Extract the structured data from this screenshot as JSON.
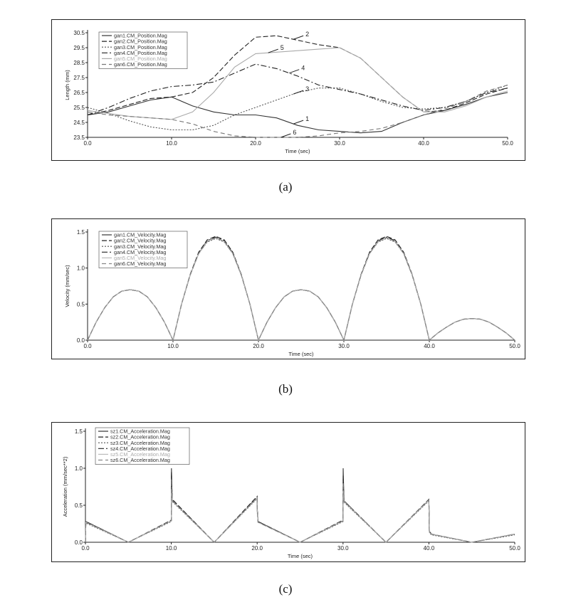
{
  "captions": [
    "(a)",
    "(b)",
    "(c)"
  ],
  "chart_data": [
    {
      "type": "line",
      "xlabel": "Time (sec)",
      "ylabel": "Length (mm)",
      "xlim": [
        0,
        50
      ],
      "ylim": [
        23.5,
        30.5
      ],
      "xticks": [
        "0.0",
        "10.0",
        "20.0",
        "30.0",
        "40.0",
        "50.0"
      ],
      "yticks": [
        "23.5",
        "24.5",
        "25.5",
        "26.5",
        "27.5",
        "28.5",
        "29.5",
        "30.5"
      ],
      "legend_position": "top-left",
      "grid": false,
      "x": [
        0,
        2.5,
        5,
        7.5,
        10,
        12.5,
        15,
        17.5,
        20,
        22.5,
        25,
        27.5,
        30,
        32.5,
        35,
        37.5,
        40,
        42.5,
        45,
        47.5,
        50
      ],
      "series": [
        {
          "name": "gan1.CM_Position.Mag",
          "label": "1",
          "color": "#333333",
          "dash": "",
          "values": [
            25.0,
            25.2,
            25.6,
            26.0,
            26.2,
            25.6,
            25.2,
            25.0,
            25.0,
            24.8,
            24.3,
            24.0,
            23.9,
            23.8,
            23.9,
            24.5,
            25.0,
            25.3,
            25.7,
            26.2,
            26.5
          ]
        },
        {
          "name": "gan2.CM_Position.Mag",
          "label": "2",
          "color": "#222222",
          "dash": "7,3",
          "values": [
            25.0,
            25.3,
            25.7,
            26.1,
            26.2,
            26.5,
            27.5,
            29.0,
            30.2,
            30.3,
            30.0,
            29.7,
            29.5,
            28.8,
            27.5,
            26.2,
            25.2,
            25.3,
            25.8,
            26.4,
            26.8
          ]
        },
        {
          "name": "gan3.CM_Position.Mag",
          "label": "3",
          "color": "#555555",
          "dash": "2,2",
          "values": [
            25.5,
            25.1,
            24.6,
            24.2,
            24.0,
            24.0,
            24.3,
            25.0,
            25.5,
            26.0,
            26.5,
            26.8,
            26.8,
            26.4,
            25.9,
            25.5,
            25.4,
            25.5,
            25.9,
            26.5,
            27.0
          ]
        },
        {
          "name": "gan4.CM_Position.Mag",
          "label": "4",
          "color": "#222222",
          "dash": "8,3,2,3",
          "values": [
            25.0,
            25.5,
            26.1,
            26.6,
            26.9,
            27.0,
            27.2,
            27.8,
            28.4,
            28.1,
            27.6,
            27.0,
            26.7,
            26.4,
            26.0,
            25.6,
            25.3,
            25.5,
            25.9,
            26.5,
            26.8
          ]
        },
        {
          "name": "gan5.CM_Position.Mag",
          "label": "5",
          "color": "#aaaaaa",
          "dash": "",
          "values": [
            25.3,
            25.1,
            24.9,
            24.8,
            24.7,
            25.2,
            26.5,
            28.2,
            29.1,
            29.2,
            29.3,
            29.4,
            29.5,
            28.8,
            27.5,
            26.2,
            25.2,
            25.2,
            25.6,
            26.2,
            26.6
          ]
        },
        {
          "name": "gan6.CM_Position.Mag",
          "label": "6",
          "color": "#777777",
          "dash": "6,4",
          "values": [
            25.2,
            25.0,
            24.9,
            24.8,
            24.7,
            24.4,
            23.9,
            23.6,
            23.5,
            23.5,
            23.5,
            23.6,
            23.8,
            23.9,
            24.1,
            24.5,
            25.0,
            25.4,
            25.9,
            26.6,
            27.0
          ]
        }
      ]
    },
    {
      "type": "line",
      "xlabel": "Time (sec)",
      "ylabel": "Velocity (mm/sec)",
      "xlim": [
        0,
        50
      ],
      "ylim": [
        0,
        1.5
      ],
      "xticks": [
        "0.0",
        "10.0",
        "20.0",
        "30.0",
        "40.0",
        "50.0"
      ],
      "yticks": [
        "0.0",
        "0.5",
        "1.0",
        "1.5"
      ],
      "legend_position": "top-left",
      "grid": false,
      "x": [
        0,
        1,
        2,
        3,
        4,
        5,
        6,
        7,
        8,
        9,
        10,
        11,
        12,
        13,
        14,
        15,
        16,
        17,
        18,
        19,
        20,
        21,
        22,
        23,
        24,
        25,
        26,
        27,
        28,
        29,
        30,
        31,
        32,
        33,
        34,
        35,
        36,
        37,
        38,
        39,
        40,
        41,
        42,
        43,
        44,
        45,
        46,
        47,
        48,
        49,
        50
      ],
      "series": [
        {
          "name": "gan1.CM_Velocity.Mag",
          "color": "#333333",
          "dash": "",
          "values": [
            0,
            0.25,
            0.45,
            0.6,
            0.68,
            0.7,
            0.68,
            0.6,
            0.45,
            0.25,
            0,
            0.5,
            0.9,
            1.2,
            1.37,
            1.42,
            1.37,
            1.2,
            0.9,
            0.5,
            0,
            0.25,
            0.45,
            0.6,
            0.68,
            0.7,
            0.68,
            0.6,
            0.45,
            0.25,
            0,
            0.5,
            0.9,
            1.2,
            1.37,
            1.42,
            1.37,
            1.2,
            0.9,
            0.5,
            0,
            0.1,
            0.18,
            0.25,
            0.29,
            0.3,
            0.29,
            0.25,
            0.18,
            0.1,
            0
          ]
        },
        {
          "name": "gan2.CM_Velocity.Mag",
          "color": "#222222",
          "dash": "7,3",
          "values": [
            0,
            0.25,
            0.45,
            0.6,
            0.68,
            0.7,
            0.68,
            0.6,
            0.45,
            0.25,
            0,
            0.5,
            0.91,
            1.22,
            1.39,
            1.44,
            1.39,
            1.22,
            0.91,
            0.5,
            0,
            0.25,
            0.45,
            0.6,
            0.68,
            0.7,
            0.68,
            0.6,
            0.45,
            0.25,
            0,
            0.5,
            0.91,
            1.22,
            1.39,
            1.44,
            1.39,
            1.22,
            0.91,
            0.5,
            0,
            0.1,
            0.18,
            0.25,
            0.29,
            0.3,
            0.29,
            0.25,
            0.18,
            0.1,
            0
          ]
        },
        {
          "name": "gan3.CM_Velocity.Mag",
          "color": "#555555",
          "dash": "2,2",
          "values": [
            0,
            0.25,
            0.45,
            0.6,
            0.68,
            0.7,
            0.68,
            0.6,
            0.45,
            0.25,
            0,
            0.5,
            0.9,
            1.2,
            1.36,
            1.41,
            1.36,
            1.2,
            0.9,
            0.5,
            0,
            0.25,
            0.45,
            0.6,
            0.68,
            0.7,
            0.68,
            0.6,
            0.45,
            0.25,
            0,
            0.5,
            0.9,
            1.2,
            1.36,
            1.41,
            1.36,
            1.2,
            0.9,
            0.5,
            0,
            0.1,
            0.18,
            0.25,
            0.29,
            0.3,
            0.29,
            0.25,
            0.18,
            0.1,
            0
          ]
        },
        {
          "name": "gan4.CM_Velocity.Mag",
          "color": "#222222",
          "dash": "8,3,2,3",
          "values": [
            0,
            0.25,
            0.45,
            0.6,
            0.68,
            0.7,
            0.68,
            0.6,
            0.45,
            0.25,
            0,
            0.5,
            0.9,
            1.21,
            1.38,
            1.43,
            1.38,
            1.21,
            0.9,
            0.5,
            0,
            0.25,
            0.45,
            0.6,
            0.68,
            0.7,
            0.68,
            0.6,
            0.45,
            0.25,
            0,
            0.5,
            0.9,
            1.21,
            1.38,
            1.43,
            1.38,
            1.21,
            0.9,
            0.5,
            0,
            0.1,
            0.18,
            0.25,
            0.29,
            0.3,
            0.29,
            0.25,
            0.18,
            0.1,
            0
          ]
        },
        {
          "name": "gan5.CM_Velocity.Mag",
          "color": "#bbbbbb",
          "dash": "",
          "values": [
            0,
            0.25,
            0.45,
            0.6,
            0.68,
            0.7,
            0.68,
            0.6,
            0.45,
            0.25,
            0,
            0.5,
            0.9,
            1.2,
            1.37,
            1.42,
            1.37,
            1.2,
            0.9,
            0.5,
            0,
            0.25,
            0.45,
            0.6,
            0.68,
            0.7,
            0.68,
            0.6,
            0.45,
            0.25,
            0,
            0.5,
            0.9,
            1.2,
            1.37,
            1.42,
            1.37,
            1.2,
            0.9,
            0.5,
            0,
            0.1,
            0.18,
            0.25,
            0.29,
            0.3,
            0.29,
            0.25,
            0.18,
            0.1,
            0
          ]
        },
        {
          "name": "gan6.CM_Velocity.Mag",
          "color": "#888888",
          "dash": "6,4",
          "values": [
            0,
            0.25,
            0.45,
            0.6,
            0.68,
            0.7,
            0.68,
            0.6,
            0.45,
            0.25,
            0,
            0.5,
            0.9,
            1.2,
            1.37,
            1.42,
            1.37,
            1.2,
            0.9,
            0.5,
            0,
            0.25,
            0.45,
            0.6,
            0.68,
            0.7,
            0.68,
            0.6,
            0.45,
            0.25,
            0,
            0.5,
            0.9,
            1.2,
            1.37,
            1.42,
            1.37,
            1.2,
            0.9,
            0.5,
            0,
            0.1,
            0.18,
            0.25,
            0.29,
            0.3,
            0.29,
            0.25,
            0.18,
            0.1,
            0
          ]
        }
      ]
    },
    {
      "type": "line",
      "xlabel": "Time (sec)",
      "ylabel": "Acceleration (mm/sec**2)",
      "xlim": [
        0,
        50
      ],
      "ylim": [
        0,
        1.5
      ],
      "xticks": [
        "0.0",
        "10.0",
        "20.0",
        "30.0",
        "40.0",
        "50.0"
      ],
      "yticks": [
        "0.0",
        "0.5",
        "1.0",
        "1.5"
      ],
      "legend_position": "top-left",
      "grid": false,
      "x": [
        0,
        0.05,
        5,
        10,
        10.02,
        10.12,
        15,
        20,
        20.02,
        20.1,
        25,
        30,
        30.02,
        30.12,
        35,
        40,
        40.05,
        40.3,
        45,
        50
      ],
      "series": [
        {
          "name": "sz1.CM_Acceleration.Mag",
          "color": "#333333",
          "dash": "",
          "values": [
            0,
            0.28,
            0,
            0.29,
            1.0,
            0.56,
            0,
            0.6,
            0.45,
            0.28,
            0,
            0.29,
            1.0,
            0.55,
            0,
            0.57,
            0.15,
            0.11,
            0,
            0.11
          ]
        },
        {
          "name": "sz2.CM_Acceleration.Mag",
          "color": "#222222",
          "dash": "7,3",
          "values": [
            0,
            0.27,
            0,
            0.3,
            0.95,
            0.58,
            0,
            0.62,
            0.42,
            0.28,
            0,
            0.3,
            0.85,
            0.56,
            0,
            0.58,
            0.14,
            0.11,
            0,
            0.11
          ]
        },
        {
          "name": "sz3.CM_Acceleration.Mag",
          "color": "#555555",
          "dash": "2,2",
          "values": [
            0,
            0.26,
            0,
            0.28,
            0.8,
            0.55,
            0,
            0.59,
            0.4,
            0.27,
            0,
            0.28,
            0.75,
            0.54,
            0,
            0.56,
            0.13,
            0.1,
            0,
            0.1
          ]
        },
        {
          "name": "sz4.CM_Acceleration.Mag",
          "color": "#222222",
          "dash": "8,3,2,3",
          "values": [
            0,
            0.28,
            0,
            0.29,
            0.9,
            0.57,
            0,
            0.61,
            0.44,
            0.28,
            0,
            0.29,
            0.9,
            0.56,
            0,
            0.57,
            0.15,
            0.11,
            0,
            0.11
          ]
        },
        {
          "name": "sz5.CM_Acceleration.Mag",
          "color": "#bbbbbb",
          "dash": "",
          "values": [
            0,
            0.27,
            0,
            0.29,
            0.7,
            0.56,
            0,
            0.6,
            0.4,
            0.27,
            0,
            0.29,
            0.7,
            0.55,
            0,
            0.57,
            0.13,
            0.11,
            0,
            0.11
          ]
        },
        {
          "name": "sz6.CM_Acceleration.Mag",
          "color": "#888888",
          "dash": "6,4",
          "values": [
            0,
            0.27,
            0,
            0.29,
            0.85,
            0.56,
            0,
            0.6,
            0.43,
            0.27,
            0,
            0.29,
            0.8,
            0.55,
            0,
            0.57,
            0.14,
            0.11,
            0,
            0.11
          ]
        }
      ]
    }
  ]
}
